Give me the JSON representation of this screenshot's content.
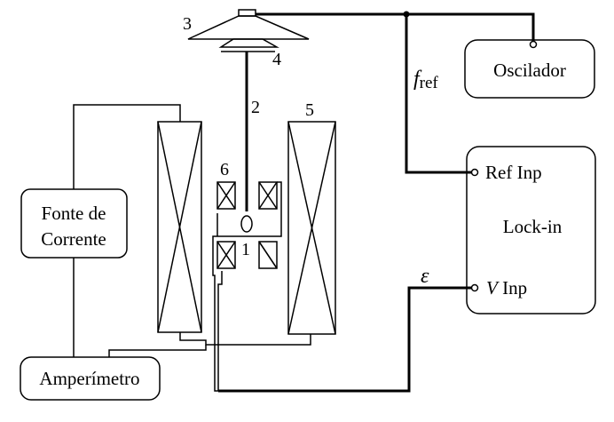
{
  "labels": {
    "oscillator": "Oscilador",
    "current_source_line1": "Fonte de",
    "current_source_line2": "Corrente",
    "ammeter": "Amperímetro",
    "lockin": "Lock-in",
    "ref_inp": "Ref Inp",
    "v_inp_italic": "V",
    "v_inp_rest": " Inp",
    "freq_ref_main": "f",
    "freq_ref_sub": "ref",
    "signal": "ε"
  },
  "component_numbers": {
    "n1": "1",
    "n2": "2",
    "n3": "3",
    "n4": "4",
    "n5": "5",
    "n6": "6"
  }
}
